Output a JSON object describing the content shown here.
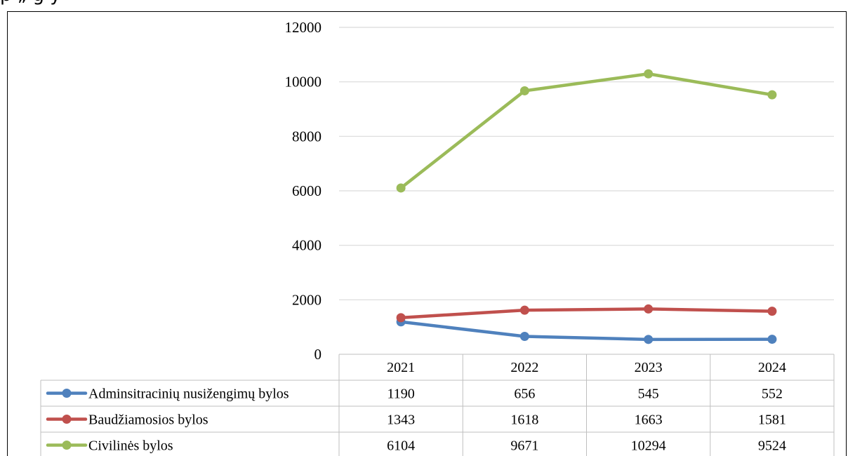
{
  "clipped_title": "p                    „            g               y",
  "chart_data": {
    "type": "line",
    "categories": [
      "2021",
      "2022",
      "2023",
      "2024"
    ],
    "ylim": [
      0,
      12000
    ],
    "yticks": [
      "0",
      "2000",
      "4000",
      "6000",
      "8000",
      "10000",
      "12000"
    ],
    "grid": true,
    "legend": "data-table",
    "series": [
      {
        "name": "Adminsitracinių nusižengimų bylos",
        "color": "#4f81bd",
        "values": [
          1190,
          656,
          545,
          552
        ],
        "labels": [
          "1190",
          "656",
          "545",
          "552"
        ]
      },
      {
        "name": "Baudžiamosios bylos",
        "color": "#c0504d",
        "values": [
          1343,
          1618,
          1663,
          1581
        ],
        "labels": [
          "1343",
          "1618",
          "1663",
          "1581"
        ]
      },
      {
        "name": "Civilinės bylos",
        "color": "#9bbb59",
        "values": [
          6104,
          9671,
          10294,
          9524
        ],
        "labels": [
          "6104",
          "9671",
          "10294",
          "9524"
        ]
      }
    ]
  }
}
